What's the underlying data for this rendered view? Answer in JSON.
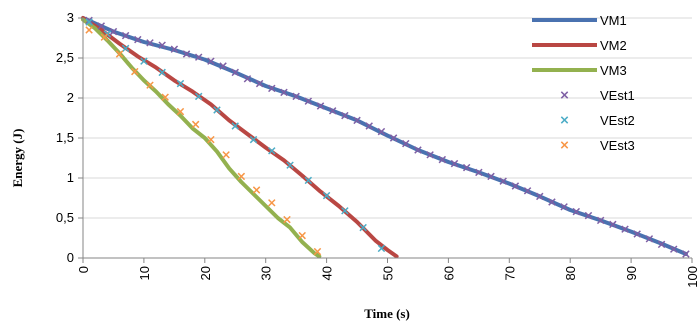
{
  "chart_data": {
    "type": "line",
    "title": "",
    "xlabel": "Time (s)",
    "ylabel": "Energy (J)",
    "xlim": [
      0,
      100
    ],
    "ylim": [
      0,
      3
    ],
    "xticks": [
      0,
      10,
      20,
      30,
      40,
      50,
      60,
      70,
      80,
      90,
      100
    ],
    "yticks": [
      0,
      0.5,
      1,
      1.5,
      2,
      2.5,
      3
    ],
    "xtick_labels": [
      "0",
      "10",
      "20",
      "30",
      "40",
      "50",
      "60",
      "70",
      "80",
      "90",
      "100"
    ],
    "ytick_labels": [
      "0",
      "0,5",
      "1",
      "1,5",
      "2",
      "2,5",
      "3"
    ],
    "grid": "horizontal",
    "legend": "top-right",
    "series": [
      {
        "name": "VM1",
        "kind": "line",
        "color": "#4a72b0",
        "x": [
          0,
          5,
          10,
          15,
          20,
          25,
          30,
          35,
          40,
          45,
          50,
          55,
          60,
          65,
          70,
          75,
          80,
          85,
          90,
          95,
          99
        ],
        "y": [
          3.0,
          2.83,
          2.7,
          2.6,
          2.48,
          2.32,
          2.15,
          2.02,
          1.87,
          1.72,
          1.53,
          1.35,
          1.2,
          1.07,
          0.93,
          0.77,
          0.6,
          0.47,
          0.33,
          0.18,
          0.05
        ]
      },
      {
        "name": "VM2",
        "kind": "line",
        "color": "#b94743",
        "x": [
          0,
          3,
          6,
          9,
          12,
          15,
          18,
          21,
          24,
          27,
          30,
          33,
          36,
          39,
          42,
          45,
          48,
          50,
          51.5
        ],
        "y": [
          3.0,
          2.85,
          2.68,
          2.52,
          2.38,
          2.22,
          2.08,
          1.92,
          1.72,
          1.55,
          1.38,
          1.22,
          1.03,
          0.83,
          0.65,
          0.45,
          0.22,
          0.1,
          0.02
        ]
      },
      {
        "name": "VM3",
        "kind": "line",
        "color": "#93b14f",
        "x": [
          0,
          2,
          4,
          6,
          8,
          10,
          12,
          14,
          16,
          18,
          20,
          22,
          24,
          26,
          28,
          30,
          32,
          34,
          36,
          38,
          38.8
        ],
        "y": [
          2.98,
          2.87,
          2.72,
          2.56,
          2.38,
          2.22,
          2.08,
          1.92,
          1.78,
          1.62,
          1.5,
          1.33,
          1.12,
          0.95,
          0.8,
          0.65,
          0.5,
          0.38,
          0.2,
          0.06,
          0.02
        ]
      },
      {
        "name": "VEst1",
        "kind": "marker",
        "color": "#7e5fa4",
        "x": [
          1,
          3,
          5,
          7,
          9,
          11,
          13,
          15,
          17,
          19,
          21,
          23,
          25,
          27,
          29,
          31,
          33,
          35,
          37,
          39,
          41,
          43,
          45,
          47,
          49,
          51,
          53,
          55,
          57,
          59,
          61,
          63,
          65,
          67,
          69,
          71,
          73,
          75,
          77,
          79,
          81,
          83,
          85,
          87,
          89,
          91,
          93,
          95,
          97,
          99
        ],
        "y": [
          2.97,
          2.9,
          2.83,
          2.78,
          2.73,
          2.69,
          2.66,
          2.61,
          2.55,
          2.51,
          2.46,
          2.4,
          2.32,
          2.24,
          2.18,
          2.12,
          2.07,
          2.02,
          1.96,
          1.9,
          1.84,
          1.78,
          1.72,
          1.65,
          1.58,
          1.5,
          1.43,
          1.35,
          1.29,
          1.23,
          1.18,
          1.13,
          1.07,
          1.02,
          0.96,
          0.9,
          0.84,
          0.77,
          0.7,
          0.64,
          0.58,
          0.53,
          0.47,
          0.42,
          0.36,
          0.3,
          0.24,
          0.17,
          0.11,
          0.05
        ]
      },
      {
        "name": "VEst2",
        "kind": "marker",
        "color": "#4bacc6",
        "x": [
          1,
          4,
          7,
          10,
          13,
          16,
          19,
          22,
          25,
          28,
          31,
          34,
          37,
          40,
          43,
          46,
          49
        ],
        "y": [
          2.95,
          2.8,
          2.62,
          2.46,
          2.32,
          2.18,
          2.02,
          1.85,
          1.65,
          1.48,
          1.34,
          1.16,
          0.97,
          0.78,
          0.59,
          0.38,
          0.12
        ]
      },
      {
        "name": "VEst3",
        "kind": "marker",
        "color": "#f79646",
        "x": [
          1,
          3.5,
          6,
          8.5,
          11,
          13.5,
          16,
          18.5,
          21,
          23.5,
          26,
          28.5,
          31,
          33.5,
          36,
          38.5
        ],
        "y": [
          2.85,
          2.76,
          2.55,
          2.33,
          2.16,
          2.01,
          1.83,
          1.67,
          1.48,
          1.29,
          1.02,
          0.85,
          0.69,
          0.48,
          0.28,
          0.08
        ]
      }
    ]
  }
}
